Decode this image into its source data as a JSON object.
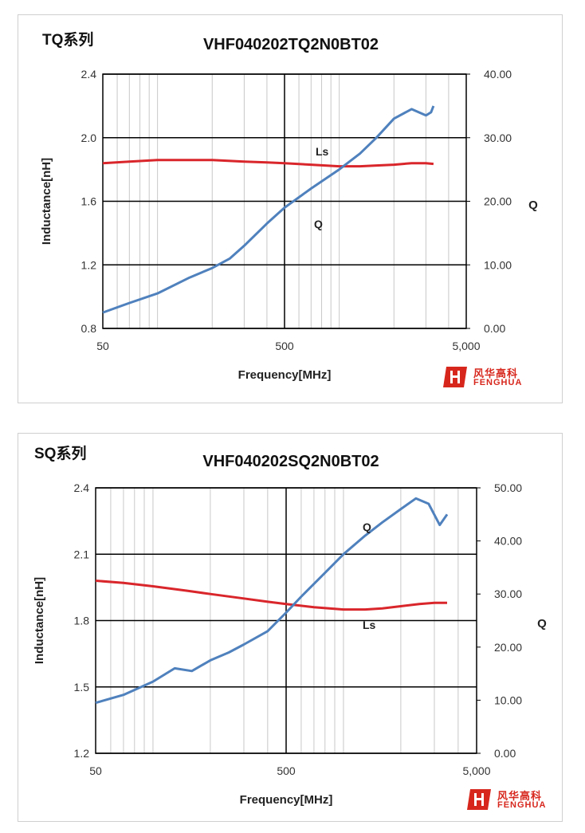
{
  "colors": {
    "ls": "#d9262b",
    "q": "#4f81bd",
    "grid": "#000000",
    "minor": "#c8c8c8"
  },
  "logo": {
    "cn": "风华高科",
    "en": "FENGHUA"
  },
  "chart_data": [
    {
      "type": "line",
      "tag": "TQ系列",
      "title": "VHF040202TQ2N0BT02",
      "xlabel": "Frequency[MHz]",
      "ylabel": "Inductance[nH]",
      "y2label": "Q",
      "xscale": "log",
      "xlim": [
        50,
        5000
      ],
      "xticks": [
        "50",
        "500",
        "5,000"
      ],
      "ylim": [
        0.8,
        2.4
      ],
      "yticks": [
        "0.8",
        "1.2",
        "1.6",
        "2.0",
        "2.4"
      ],
      "y2lim": [
        0,
        40
      ],
      "y2ticks": [
        "0.00",
        "10.00",
        "20.00",
        "30.00",
        "40.00"
      ],
      "series": [
        {
          "name": "Ls",
          "axis": "left",
          "label": "Ls",
          "x": [
            50,
            70,
            100,
            150,
            200,
            300,
            400,
            500,
            700,
            1000,
            1300,
            1600,
            2000,
            2500,
            3000,
            3300
          ],
          "y": [
            1.84,
            1.85,
            1.86,
            1.86,
            1.86,
            1.85,
            1.845,
            1.84,
            1.83,
            1.82,
            1.82,
            1.825,
            1.83,
            1.84,
            1.84,
            1.835
          ]
        },
        {
          "name": "Q",
          "axis": "right",
          "label": "Q",
          "x": [
            50,
            70,
            100,
            150,
            200,
            250,
            300,
            400,
            500,
            700,
            1000,
            1300,
            1600,
            2000,
            2500,
            3000,
            3200,
            3300
          ],
          "y": [
            2.5,
            4.0,
            5.5,
            8.0,
            9.5,
            11.0,
            13.0,
            16.5,
            19.0,
            22.0,
            25.0,
            27.5,
            30.0,
            33.0,
            34.5,
            33.5,
            34.0,
            35.0
          ]
        }
      ]
    },
    {
      "type": "line",
      "tag": "SQ系列",
      "title": "VHF040202SQ2N0BT02",
      "xlabel": "Frequency[MHz]",
      "ylabel": "Inductance[nH]",
      "y2label": "Q",
      "xscale": "log",
      "xlim": [
        50,
        5000
      ],
      "xticks": [
        "50",
        "500",
        "5,000"
      ],
      "ylim": [
        1.2,
        2.4
      ],
      "yticks": [
        "1.2",
        "1.5",
        "1.8",
        "2.1",
        "2.4"
      ],
      "y2lim": [
        0,
        50
      ],
      "y2ticks": [
        "0.00",
        "10.00",
        "20.00",
        "30.00",
        "40.00",
        "50.00"
      ],
      "series": [
        {
          "name": "Ls",
          "axis": "left",
          "label": "Ls",
          "x": [
            50,
            70,
            100,
            150,
            200,
            300,
            400,
            500,
            700,
            1000,
            1300,
            1600,
            2000,
            2500,
            3000,
            3500
          ],
          "y": [
            1.98,
            1.97,
            1.955,
            1.935,
            1.92,
            1.9,
            1.885,
            1.875,
            1.86,
            1.85,
            1.85,
            1.855,
            1.865,
            1.875,
            1.88,
            1.88
          ]
        },
        {
          "name": "Q",
          "axis": "right",
          "label": "Q",
          "x": [
            50,
            70,
            100,
            130,
            160,
            200,
            250,
            300,
            400,
            500,
            600,
            800,
            1000,
            1300,
            1600,
            2000,
            2400,
            2800,
            3200,
            3500
          ],
          "y": [
            9.5,
            11.0,
            13.5,
            16.0,
            15.5,
            17.5,
            19.0,
            20.5,
            23.0,
            26.5,
            29.5,
            34.0,
            37.5,
            41.0,
            43.5,
            46.0,
            48.0,
            47.0,
            43.0,
            45.0
          ]
        }
      ]
    }
  ]
}
